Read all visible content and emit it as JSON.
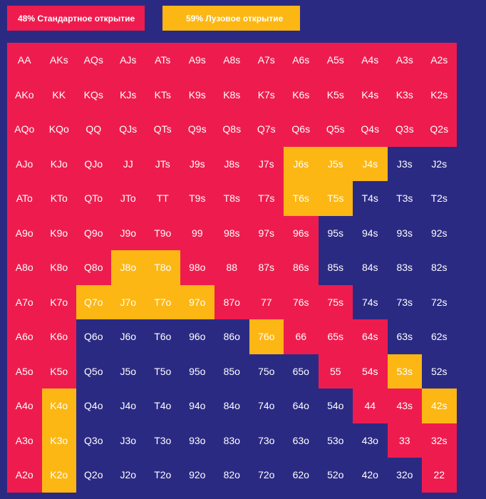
{
  "legend": {
    "standard": {
      "label": "48% Стандартное открытие",
      "color": "#ee1c4e"
    },
    "loose": {
      "label": "59% Лузовое открытие",
      "color": "#fcb714"
    }
  },
  "grid": {
    "rows": [
      [
        "AA",
        "AKs",
        "AQs",
        "AJs",
        "ATs",
        "A9s",
        "A8s",
        "A7s",
        "A6s",
        "A5s",
        "A4s",
        "A3s",
        "A2s"
      ],
      [
        "AKo",
        "KK",
        "KQs",
        "KJs",
        "KTs",
        "K9s",
        "K8s",
        "K7s",
        "K6s",
        "K5s",
        "K4s",
        "K3s",
        "K2s"
      ],
      [
        "AQo",
        "KQo",
        "QQ",
        "QJs",
        "QTs",
        "Q9s",
        "Q8s",
        "Q7s",
        "Q6s",
        "Q5s",
        "Q4s",
        "Q3s",
        "Q2s"
      ],
      [
        "AJo",
        "KJo",
        "QJo",
        "JJ",
        "JTs",
        "J9s",
        "J8s",
        "J7s",
        "J6s",
        "J5s",
        "J4s",
        "J3s",
        "J2s"
      ],
      [
        "ATo",
        "KTo",
        "QTo",
        "JTo",
        "TT",
        "T9s",
        "T8s",
        "T7s",
        "T6s",
        "T5s",
        "T4s",
        "T3s",
        "T2s"
      ],
      [
        "A9o",
        "K9o",
        "Q9o",
        "J9o",
        "T9o",
        "99",
        "98s",
        "97s",
        "96s",
        "95s",
        "94s",
        "93s",
        "92s"
      ],
      [
        "A8o",
        "K8o",
        "Q8o",
        "J8o",
        "T8o",
        "98o",
        "88",
        "87s",
        "86s",
        "85s",
        "84s",
        "83s",
        "82s"
      ],
      [
        "A7o",
        "K7o",
        "Q7o",
        "J7o",
        "T7o",
        "97o",
        "87o",
        "77",
        "76s",
        "75s",
        "74s",
        "73s",
        "72s"
      ],
      [
        "A6o",
        "K6o",
        "Q6o",
        "J6o",
        "T6o",
        "96o",
        "86o",
        "76o",
        "66",
        "65s",
        "64s",
        "63s",
        "62s"
      ],
      [
        "A5o",
        "K5o",
        "Q5o",
        "J5o",
        "T5o",
        "95o",
        "85o",
        "75o",
        "65o",
        "55",
        "54s",
        "53s",
        "52s"
      ],
      [
        "A4o",
        "K4o",
        "Q4o",
        "J4o",
        "T4o",
        "94o",
        "84o",
        "74o",
        "64o",
        "54o",
        "44",
        "43s",
        "42s"
      ],
      [
        "A3o",
        "K3o",
        "Q3o",
        "J3o",
        "T3o",
        "93o",
        "83o",
        "73o",
        "63o",
        "53o",
        "43o",
        "33",
        "32s"
      ],
      [
        "A2o",
        "K2o",
        "Q2o",
        "J2o",
        "T2o",
        "92o",
        "82o",
        "72o",
        "62o",
        "52o",
        "42o",
        "32o",
        "22"
      ]
    ],
    "status": [
      "rrrrrrrrrrrrr",
      "rrrrrrrrrrrrr",
      "rrrrrrrrrrrrr",
      "rrrrrrrryyybb",
      "rrrrrrrryybbb",
      "rrrrrrrrrbbbb",
      "rrryyrrrrbbbb",
      "rryyyyrrrrbbb",
      "rrbbbbbyrrrbb",
      "rrbbbbbbbrryb",
      "rybbbbbbbbrry",
      "rybbbbbbbbbrr",
      "rybbbbbbbbbbr"
    ]
  }
}
